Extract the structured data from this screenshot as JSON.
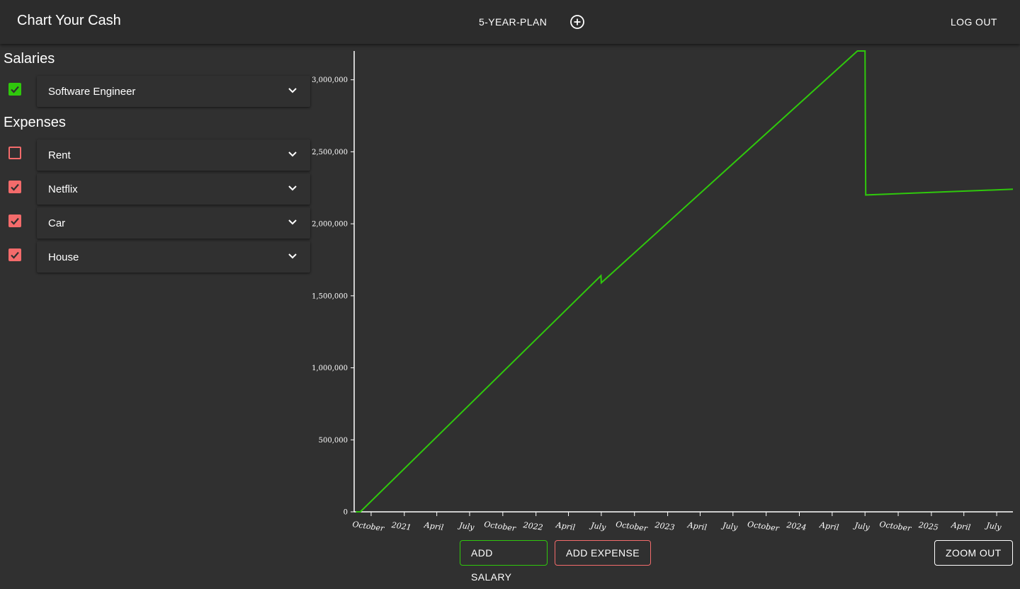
{
  "header": {
    "title": "Chart Your Cash",
    "plan_name": "5-YEAR-PLAN",
    "add_plan_icon": "plus-circle-icon",
    "logout_label": "LOG OUT"
  },
  "salaries": {
    "title": "Salaries",
    "items": [
      {
        "label": "Software Engineer",
        "checked": true
      }
    ]
  },
  "expenses": {
    "title": "Expenses",
    "items": [
      {
        "label": "Rent",
        "checked": false
      },
      {
        "label": "Netflix",
        "checked": true
      },
      {
        "label": "Car",
        "checked": true
      },
      {
        "label": "House",
        "checked": true
      }
    ]
  },
  "actions": {
    "add_salary": "ADD SALARY",
    "add_expense": "ADD EXPENSE",
    "zoom_out": "ZOOM OUT"
  },
  "colors": {
    "background": "#303030",
    "salary_green": "#2fc80c",
    "expense_red": "#f36b6b",
    "line": "#2fc80c"
  },
  "chart_data": {
    "type": "line",
    "ylim": [
      0,
      3200000
    ],
    "y_ticks": [
      {
        "value": 0,
        "label": "0"
      },
      {
        "value": 500000,
        "label": "500,000"
      },
      {
        "value": 1000000,
        "label": "1,000,000"
      },
      {
        "value": 1500000,
        "label": "1,500,000"
      },
      {
        "value": 2000000,
        "label": "2,000,000"
      },
      {
        "value": 2500000,
        "label": "2,500,000"
      },
      {
        "value": 3000000,
        "label": "3,000,000"
      }
    ],
    "xlim": [
      "2020-08-15",
      "2025-08-15"
    ],
    "x_ticks": [
      {
        "date": "2020-10-01",
        "label": "October"
      },
      {
        "date": "2021-01-01",
        "label": "2021"
      },
      {
        "date": "2021-04-01",
        "label": "April"
      },
      {
        "date": "2021-07-01",
        "label": "July"
      },
      {
        "date": "2021-10-01",
        "label": "October"
      },
      {
        "date": "2022-01-01",
        "label": "2022"
      },
      {
        "date": "2022-04-01",
        "label": "April"
      },
      {
        "date": "2022-07-01",
        "label": "July"
      },
      {
        "date": "2022-10-01",
        "label": "October"
      },
      {
        "date": "2023-01-01",
        "label": "2023"
      },
      {
        "date": "2023-04-01",
        "label": "April"
      },
      {
        "date": "2023-07-01",
        "label": "July"
      },
      {
        "date": "2023-10-01",
        "label": "October"
      },
      {
        "date": "2024-01-01",
        "label": "2024"
      },
      {
        "date": "2024-04-01",
        "label": "April"
      },
      {
        "date": "2024-07-01",
        "label": "July"
      },
      {
        "date": "2024-10-01",
        "label": "October"
      },
      {
        "date": "2025-01-01",
        "label": "2025"
      },
      {
        "date": "2025-04-01",
        "label": "April"
      },
      {
        "date": "2025-07-01",
        "label": "July"
      }
    ],
    "series": [
      {
        "points": [
          {
            "x": "2020-08-20",
            "y": 0
          },
          {
            "x": "2020-09-01",
            "y": 0
          },
          {
            "x": "2022-06-30",
            "y": 1640000
          },
          {
            "x": "2022-07-01",
            "y": 1590000
          },
          {
            "x": "2024-06-10",
            "y": 3200000
          },
          {
            "x": "2024-07-01",
            "y": 3200000
          },
          {
            "x": "2024-07-03",
            "y": 2200000
          },
          {
            "x": "2025-08-15",
            "y": 2240000
          }
        ]
      }
    ],
    "grid": false
  }
}
